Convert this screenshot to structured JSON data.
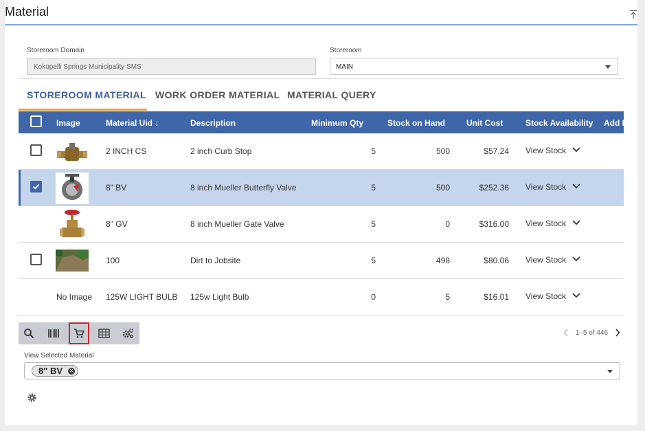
{
  "page": {
    "title": "Material"
  },
  "filters": {
    "domain_label": "Storeroom Domain",
    "domain_value": "Kokopelli Springs Municipality SMS",
    "storeroom_label": "Storeroom",
    "storeroom_value": "MAIN"
  },
  "tabs": [
    {
      "label": "STOREROOM MATERIAL",
      "active": true
    },
    {
      "label": "WORK ORDER MATERIAL",
      "active": false
    },
    {
      "label": "MATERIAL QUERY",
      "active": false
    }
  ],
  "table": {
    "columns": {
      "image": "Image",
      "material_uid": "Material Uid ↓",
      "description": "Description",
      "minimum_qty": "Minimum Qty",
      "stock_on_hand": "Stock on Hand",
      "unit_cost": "Unit Cost",
      "stock_availability": "Stock Availability",
      "add": "Add R"
    },
    "rows": [
      {
        "image": "",
        "uid": "2 INCH CS",
        "description": "2 inch Curb Stop",
        "min_qty": "5",
        "stock": "500",
        "cost": "$57.24",
        "availability": "View Stock"
      },
      {
        "image": "",
        "uid": "8\" BV",
        "description": "8 inch Mueller Butterfly Valve",
        "min_qty": "5",
        "stock": "500",
        "cost": "$252.36",
        "availability": "View Stock"
      },
      {
        "image": "",
        "uid": "8\" GV",
        "description": "8 inch Mueller Gate Valve",
        "min_qty": "5",
        "stock": "0",
        "cost": "$316.00",
        "availability": "View Stock"
      },
      {
        "image": "",
        "uid": "100",
        "description": "Dirt to Jobsite",
        "min_qty": "5",
        "stock": "498",
        "cost": "$80.06",
        "availability": "View Stock"
      },
      {
        "image": "No Image",
        "uid": "125W LIGHT BULB",
        "description": "125w Light Bulb",
        "min_qty": "0",
        "stock": "5",
        "cost": "$16.01",
        "availability": "View Stock"
      }
    ]
  },
  "toolbar": {
    "icons": [
      "search-icon",
      "barcode-icon",
      "cart-icon",
      "grid-icon",
      "gears-icon"
    ]
  },
  "pager": {
    "text": "1–5 of 446"
  },
  "selected": {
    "label": "View Selected Material",
    "chip": "8\" BV"
  },
  "colors": {
    "accent": "#3f66a8",
    "tab_underline": "#e0a545",
    "selected_row": "#c5d5ec"
  }
}
